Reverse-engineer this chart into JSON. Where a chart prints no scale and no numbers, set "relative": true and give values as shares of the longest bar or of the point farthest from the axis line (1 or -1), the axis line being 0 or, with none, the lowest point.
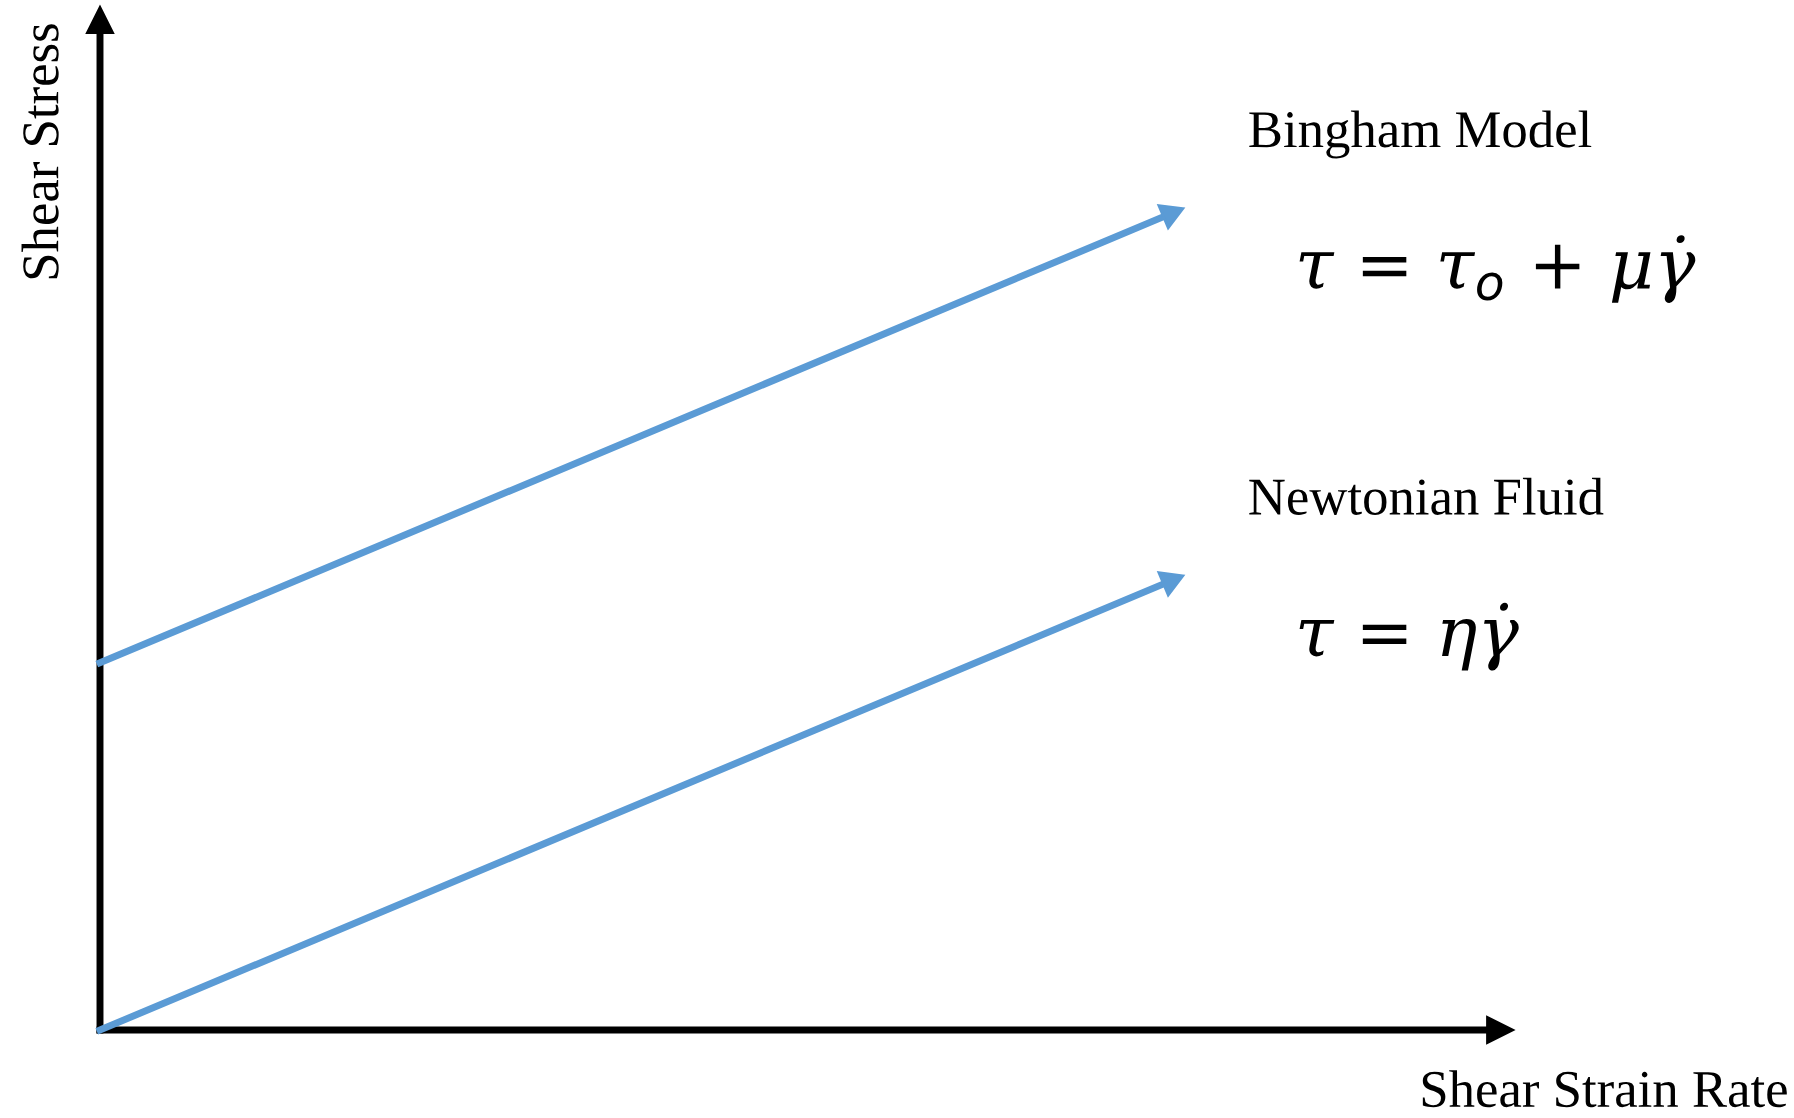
{
  "chart_data": {
    "type": "line",
    "relative": true,
    "xlabel": "Shear Strain Rate",
    "ylabel": "Shear Stress",
    "categories": [
      null,
      null
    ],
    "series": [
      {
        "name": "Bingham Model",
        "color": "#5b9bd5",
        "values": [
          0.45,
          1
        ]
      },
      {
        "name": "Newtonian Fluid",
        "color": "#5b9bd5",
        "values": [
          0,
          0.55
        ]
      }
    ],
    "annotations": [
      "τ = τ$_{o}$ + μγ̇",
      "τ = ηγ̇"
    ],
    "legend": false,
    "line_style": "solid"
  }
}
